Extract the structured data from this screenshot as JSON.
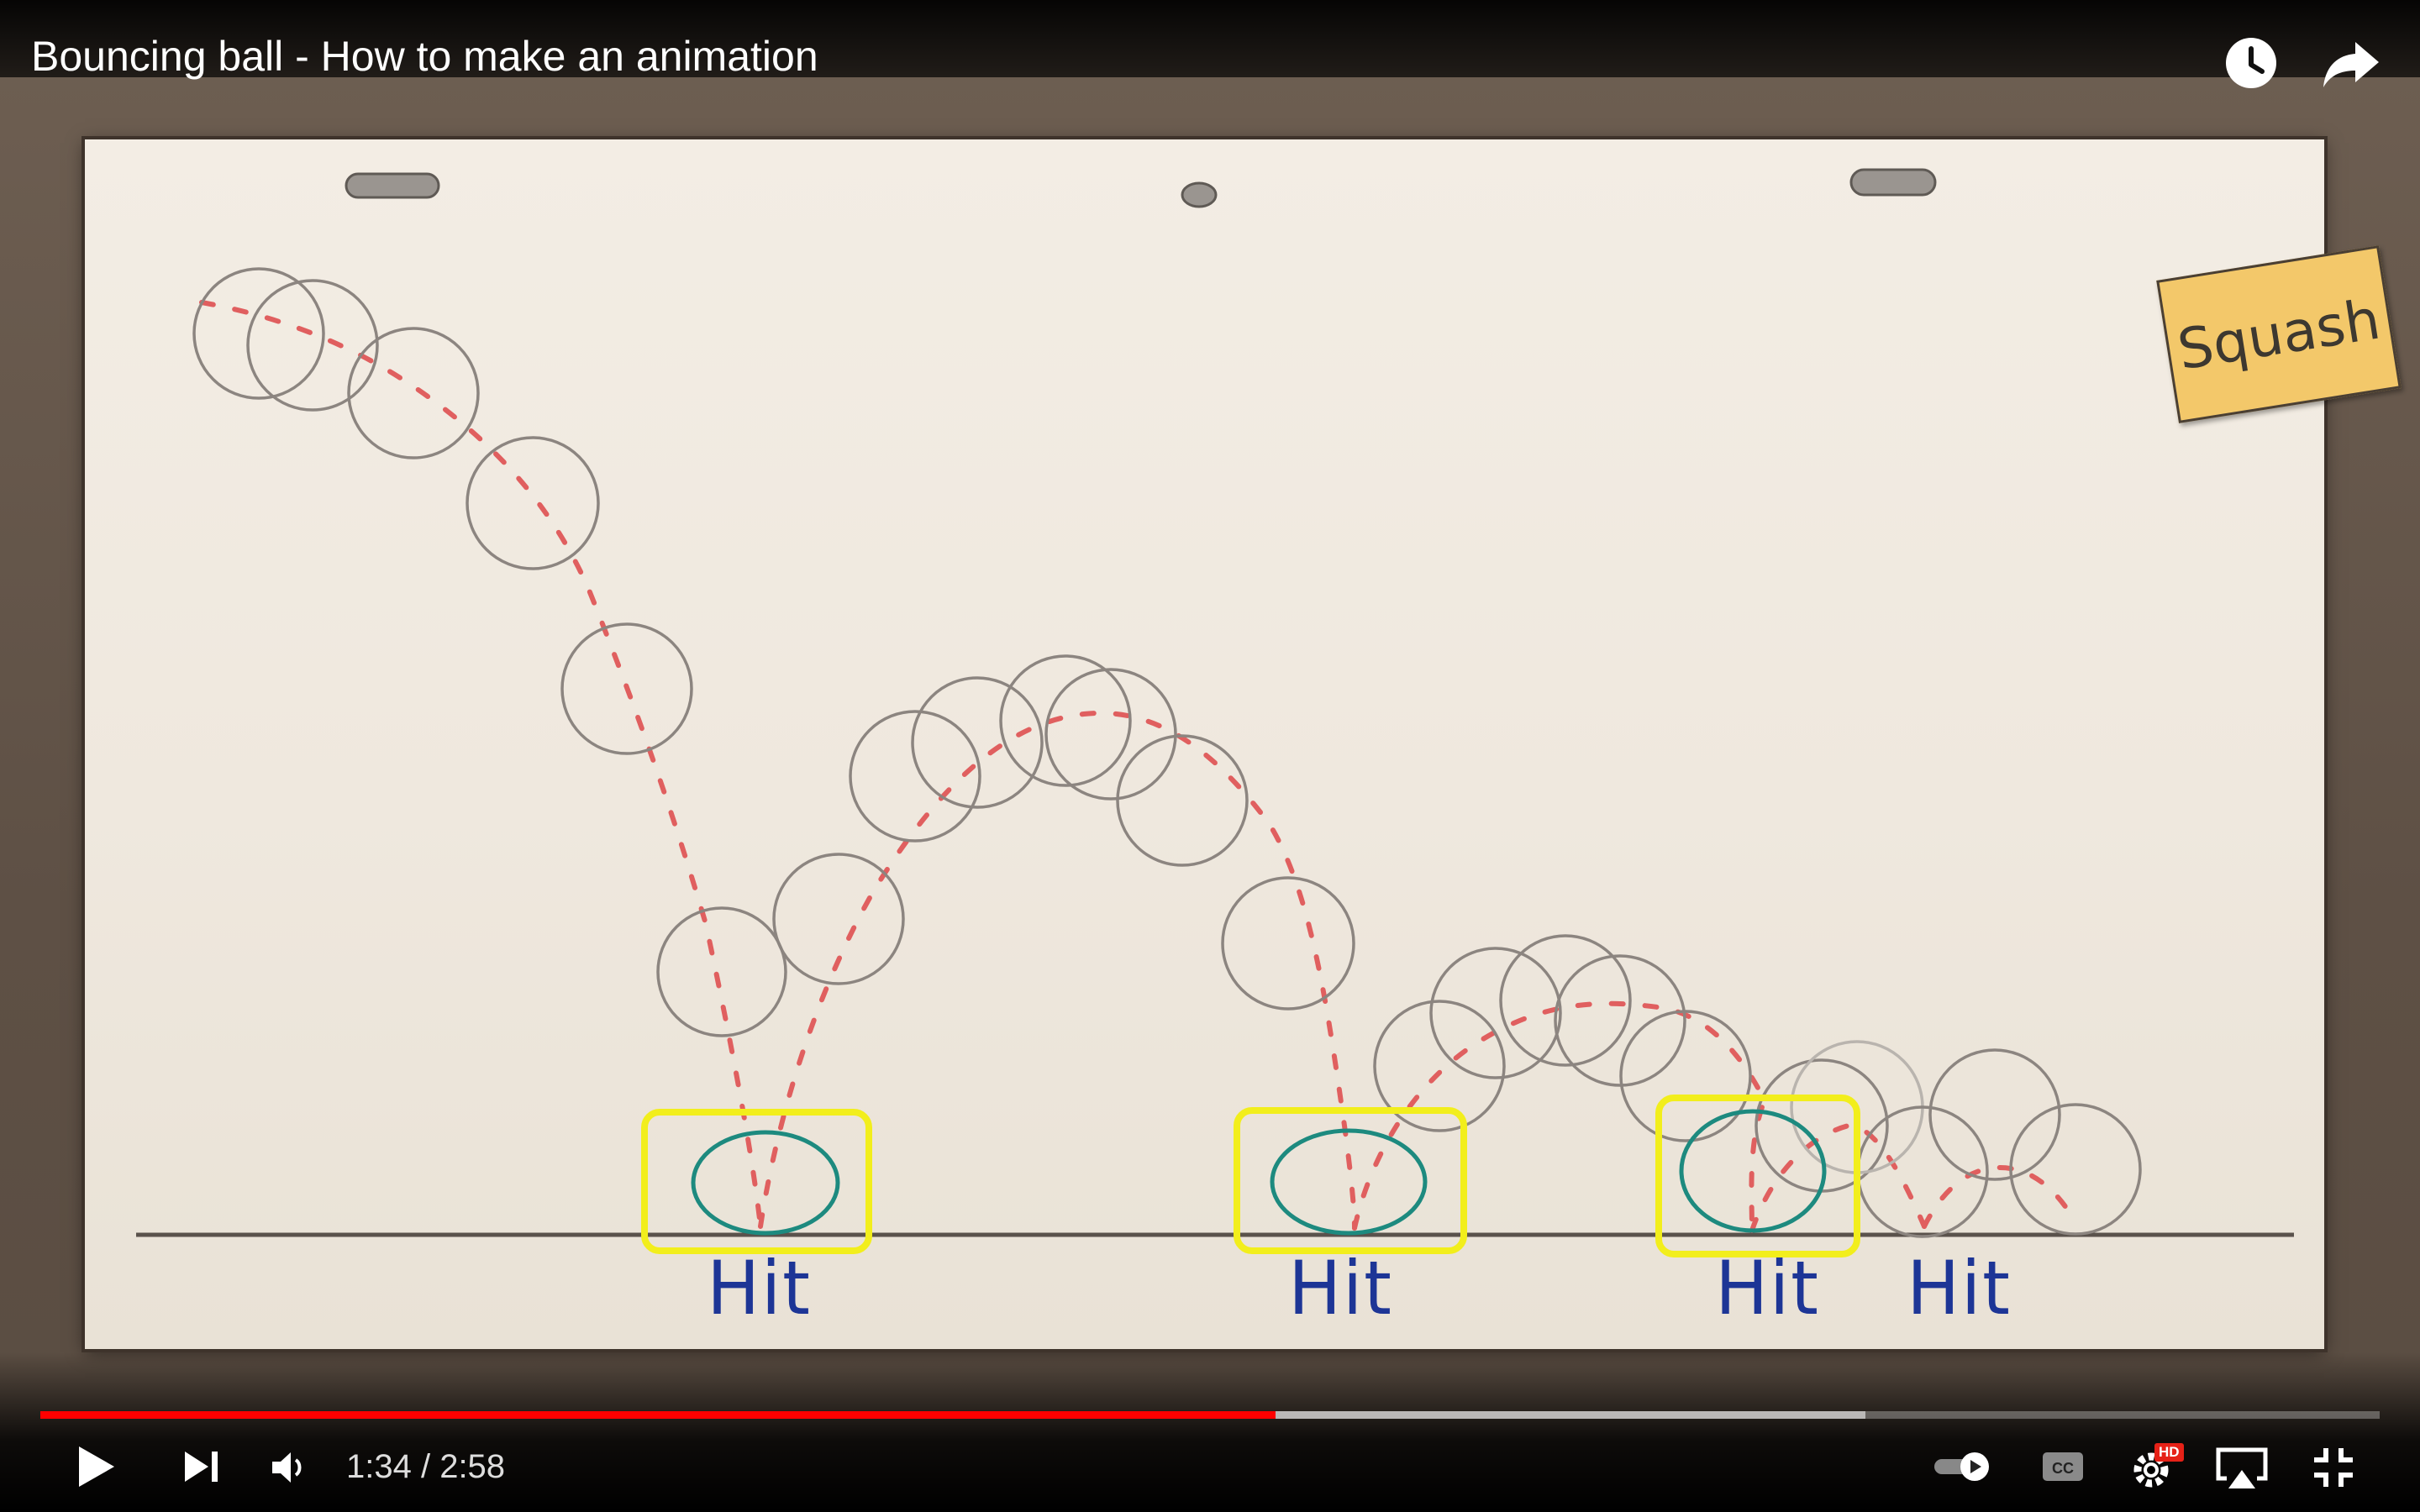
{
  "video": {
    "title": "Bouncing ball - How to make an animation",
    "note_label": "Squash",
    "hit_labels": [
      "Hit",
      "Hit",
      "Hit",
      "Hit"
    ],
    "colors": {
      "arc": "#e05f5f",
      "contact_ball": "#1d8a7f",
      "highlight": "#f2ee1c",
      "hit_text": "#1d3596",
      "note": "#f3c86a"
    }
  },
  "player": {
    "current_time": "1:34",
    "duration": "2:58",
    "time_display": "1:34 / 2:58",
    "progress_played_fraction": 0.528,
    "progress_buffered_fraction": 0.78,
    "accent_color": "#ff0000",
    "icons": {
      "watch_later": "clock-icon",
      "share": "share-arrow-icon",
      "play": "play-icon",
      "next": "next-icon",
      "volume": "volume-icon",
      "autoplay": "autoplay-toggle-icon",
      "captions": "cc-icon",
      "settings": "gear-icon",
      "airplay": "airplay-icon",
      "fullscreen_exit": "exit-fullscreen-icon"
    },
    "quality_badge": "HD",
    "captions_label": "CC"
  }
}
